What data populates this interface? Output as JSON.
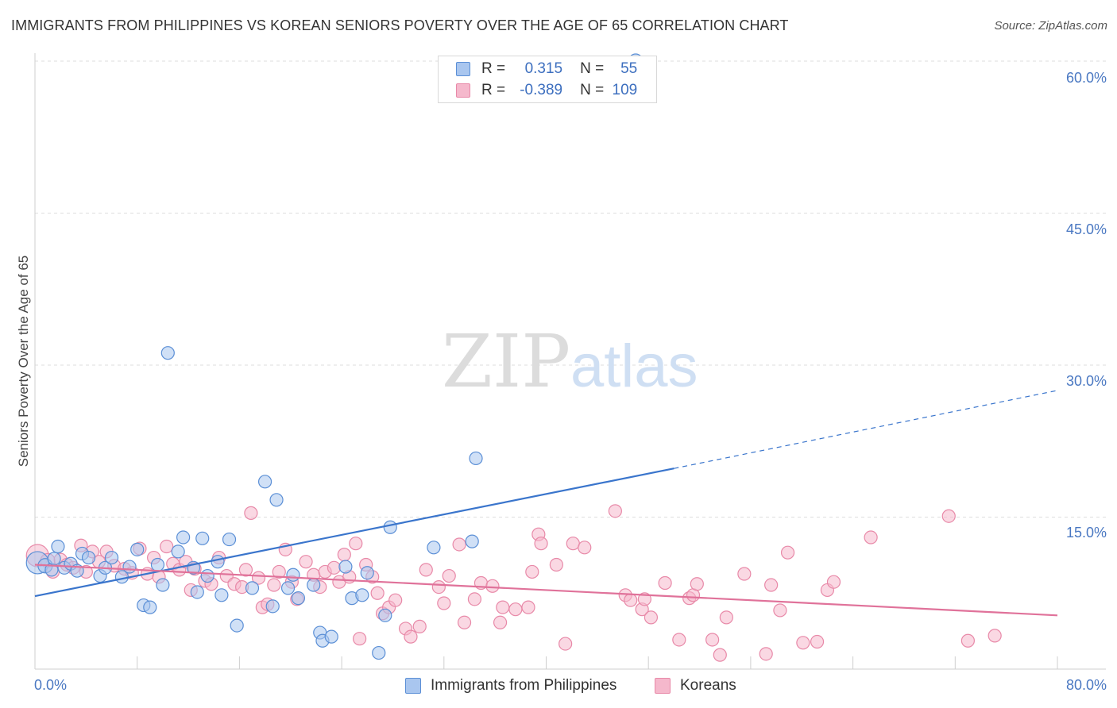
{
  "header": {
    "title": "IMMIGRANTS FROM PHILIPPINES VS KOREAN SENIORS POVERTY OVER THE AGE OF 65 CORRELATION CHART",
    "source": "Source: ZipAtlas.com"
  },
  "watermark": {
    "zip": "ZIP",
    "atlas": "atlas"
  },
  "legend": {
    "r_label": "R =",
    "n_label": "N =",
    "series": [
      {
        "r": "0.315",
        "n": "55"
      },
      {
        "r": "-0.389",
        "n": "109"
      }
    ]
  },
  "bottom_legend": [
    "Immigrants from Philippines",
    "Koreans"
  ],
  "colors": {
    "blue_fill": "#a9c6ef",
    "blue_stroke": "#5b8fd6",
    "blue_line": "#3a75cc",
    "pink_fill": "#f5b8cc",
    "pink_stroke": "#e889a8",
    "pink_line": "#e0729a",
    "tick_text": "#4a78c2",
    "grid": "#dedede"
  },
  "chart_data": {
    "type": "scatter",
    "ylabel": "Seniors Poverty Over the Age of 65",
    "xlim": [
      0,
      80
    ],
    "ylim": [
      0,
      62
    ],
    "y_ticks": [
      15,
      30,
      45,
      60
    ],
    "y_tick_labels": [
      "15.0%",
      "30.0%",
      "45.0%",
      "60.0%"
    ],
    "x_tick_labels": [
      "0.0%",
      "80.0%"
    ],
    "series": [
      {
        "name": "Immigrants from Philippines",
        "trend": {
          "x0": 0,
          "y0": 7.2,
          "x1": 50,
          "y1": 19.8,
          "dash_to_x": 80,
          "dash_to_y": 27.5
        },
        "points": [
          [
            0.2,
            10.5,
            14
          ],
          [
            0.8,
            10.2,
            9
          ],
          [
            1.3,
            9.8,
            8
          ],
          [
            1.5,
            10.9,
            8
          ],
          [
            1.8,
            12.1,
            8
          ],
          [
            2.3,
            10.0,
            8
          ],
          [
            2.8,
            10.4,
            8
          ],
          [
            3.3,
            9.7,
            8
          ],
          [
            3.7,
            11.4,
            8
          ],
          [
            4.2,
            11.0,
            8
          ],
          [
            5.1,
            9.2,
            8
          ],
          [
            5.5,
            10.0,
            8
          ],
          [
            6.0,
            11.0,
            8
          ],
          [
            6.8,
            9.1,
            8
          ],
          [
            7.4,
            10.1,
            8
          ],
          [
            8.0,
            11.8,
            8
          ],
          [
            8.5,
            6.3,
            8
          ],
          [
            9.0,
            6.1,
            8
          ],
          [
            9.6,
            10.3,
            8
          ],
          [
            10.0,
            8.3,
            8
          ],
          [
            10.4,
            31.2,
            8
          ],
          [
            11.2,
            11.6,
            8
          ],
          [
            11.6,
            13.0,
            8
          ],
          [
            12.4,
            10.0,
            8
          ],
          [
            12.7,
            7.6,
            8
          ],
          [
            13.1,
            12.9,
            8
          ],
          [
            13.5,
            9.2,
            8
          ],
          [
            14.3,
            10.6,
            8
          ],
          [
            14.6,
            7.3,
            8
          ],
          [
            15.2,
            12.8,
            8
          ],
          [
            15.8,
            4.3,
            8
          ],
          [
            17.0,
            8.0,
            8
          ],
          [
            18.0,
            18.5,
            8
          ],
          [
            18.6,
            6.2,
            8
          ],
          [
            18.9,
            16.7,
            8
          ],
          [
            19.8,
            8.0,
            8
          ],
          [
            20.2,
            9.3,
            8
          ],
          [
            20.6,
            7.0,
            8
          ],
          [
            21.8,
            8.3,
            8
          ],
          [
            22.3,
            3.6,
            8
          ],
          [
            22.5,
            2.8,
            8
          ],
          [
            23.2,
            3.2,
            8
          ],
          [
            24.3,
            10.1,
            8
          ],
          [
            24.8,
            7.0,
            8
          ],
          [
            25.6,
            7.3,
            8
          ],
          [
            26.0,
            9.5,
            8
          ],
          [
            26.9,
            1.6,
            8
          ],
          [
            27.4,
            5.3,
            8
          ],
          [
            27.8,
            14.0,
            8
          ],
          [
            31.2,
            12.0,
            8
          ],
          [
            34.2,
            12.6,
            8
          ],
          [
            34.5,
            20.8,
            8
          ],
          [
            47.0,
            60.0,
            9
          ]
        ]
      },
      {
        "name": "Koreans",
        "trend": {
          "x0": 0,
          "y0": 10.3,
          "x1": 80,
          "y1": 5.3
        },
        "points": [
          [
            0.2,
            11.2,
            14
          ],
          [
            1.0,
            10.7,
            9
          ],
          [
            1.4,
            9.6,
            8
          ],
          [
            2.0,
            10.8,
            8
          ],
          [
            2.5,
            10.3,
            8
          ],
          [
            3.0,
            10.0,
            8
          ],
          [
            3.6,
            12.2,
            8
          ],
          [
            4.0,
            9.6,
            8
          ],
          [
            4.5,
            11.6,
            8
          ],
          [
            5.0,
            10.6,
            8
          ],
          [
            5.6,
            11.6,
            8
          ],
          [
            6.2,
            10.2,
            8
          ],
          [
            7.0,
            9.9,
            8
          ],
          [
            7.6,
            9.5,
            8
          ],
          [
            8.2,
            11.9,
            8
          ],
          [
            8.8,
            9.4,
            8
          ],
          [
            9.3,
            11.0,
            8
          ],
          [
            9.7,
            9.1,
            8
          ],
          [
            10.3,
            12.1,
            8
          ],
          [
            10.8,
            10.4,
            8
          ],
          [
            11.3,
            9.8,
            8
          ],
          [
            11.8,
            10.6,
            8
          ],
          [
            12.2,
            7.8,
            8
          ],
          [
            12.5,
            9.9,
            8
          ],
          [
            13.3,
            8.7,
            8
          ],
          [
            13.8,
            8.4,
            8
          ],
          [
            14.4,
            11.0,
            8
          ],
          [
            15.0,
            9.2,
            8
          ],
          [
            15.6,
            8.4,
            8
          ],
          [
            16.2,
            8.1,
            8
          ],
          [
            16.5,
            9.8,
            8
          ],
          [
            16.9,
            15.4,
            8
          ],
          [
            17.5,
            9.0,
            8
          ],
          [
            17.8,
            6.1,
            8
          ],
          [
            18.2,
            6.4,
            8
          ],
          [
            18.7,
            8.3,
            8
          ],
          [
            19.1,
            9.6,
            8
          ],
          [
            19.6,
            11.8,
            8
          ],
          [
            20.1,
            8.6,
            8
          ],
          [
            20.5,
            6.9,
            8
          ],
          [
            21.2,
            10.6,
            8
          ],
          [
            21.8,
            9.3,
            8
          ],
          [
            22.3,
            8.1,
            8
          ],
          [
            22.7,
            9.6,
            8
          ],
          [
            23.4,
            10.0,
            8
          ],
          [
            23.8,
            8.6,
            8
          ],
          [
            24.2,
            11.3,
            8
          ],
          [
            24.6,
            9.1,
            8
          ],
          [
            25.1,
            12.4,
            8
          ],
          [
            25.4,
            3.0,
            8
          ],
          [
            25.9,
            10.3,
            8
          ],
          [
            26.4,
            9.1,
            8
          ],
          [
            26.8,
            7.5,
            8
          ],
          [
            27.2,
            5.5,
            8
          ],
          [
            27.7,
            6.1,
            8
          ],
          [
            28.2,
            6.8,
            8
          ],
          [
            29.0,
            4.0,
            8
          ],
          [
            29.4,
            3.2,
            8
          ],
          [
            30.1,
            4.2,
            8
          ],
          [
            30.6,
            9.8,
            8
          ],
          [
            31.6,
            8.1,
            8
          ],
          [
            32.0,
            6.5,
            8
          ],
          [
            32.4,
            9.2,
            8
          ],
          [
            33.2,
            12.3,
            8
          ],
          [
            33.6,
            4.6,
            8
          ],
          [
            34.4,
            6.9,
            8
          ],
          [
            34.9,
            8.5,
            8
          ],
          [
            35.8,
            8.2,
            8
          ],
          [
            36.4,
            4.6,
            8
          ],
          [
            36.6,
            6.1,
            8
          ],
          [
            37.6,
            5.9,
            8
          ],
          [
            38.6,
            6.1,
            8
          ],
          [
            38.9,
            9.6,
            8
          ],
          [
            39.4,
            13.3,
            8
          ],
          [
            39.6,
            12.4,
            8
          ],
          [
            40.8,
            10.3,
            8
          ],
          [
            41.5,
            2.5,
            8
          ],
          [
            42.1,
            12.4,
            8
          ],
          [
            43.0,
            12.0,
            8
          ],
          [
            45.4,
            15.6,
            8
          ],
          [
            46.2,
            7.3,
            8
          ],
          [
            46.6,
            6.8,
            8
          ],
          [
            47.5,
            5.9,
            8
          ],
          [
            47.7,
            6.9,
            8
          ],
          [
            48.2,
            5.1,
            8
          ],
          [
            49.3,
            8.5,
            8
          ],
          [
            50.4,
            2.9,
            8
          ],
          [
            51.2,
            7.0,
            8
          ],
          [
            51.5,
            7.3,
            8
          ],
          [
            51.8,
            8.4,
            8
          ],
          [
            53.0,
            2.9,
            8
          ],
          [
            53.6,
            1.4,
            8
          ],
          [
            54.1,
            5.1,
            8
          ],
          [
            55.5,
            9.4,
            8
          ],
          [
            57.2,
            1.5,
            8
          ],
          [
            57.6,
            8.3,
            8
          ],
          [
            58.3,
            5.8,
            8
          ],
          [
            58.9,
            11.5,
            8
          ],
          [
            60.1,
            2.6,
            8
          ],
          [
            61.2,
            2.7,
            8
          ],
          [
            62.0,
            7.8,
            8
          ],
          [
            62.5,
            8.6,
            8
          ],
          [
            65.4,
            13.0,
            8
          ],
          [
            71.5,
            15.1,
            8
          ],
          [
            73.0,
            2.8,
            8
          ],
          [
            75.1,
            3.3,
            8
          ]
        ]
      }
    ]
  }
}
